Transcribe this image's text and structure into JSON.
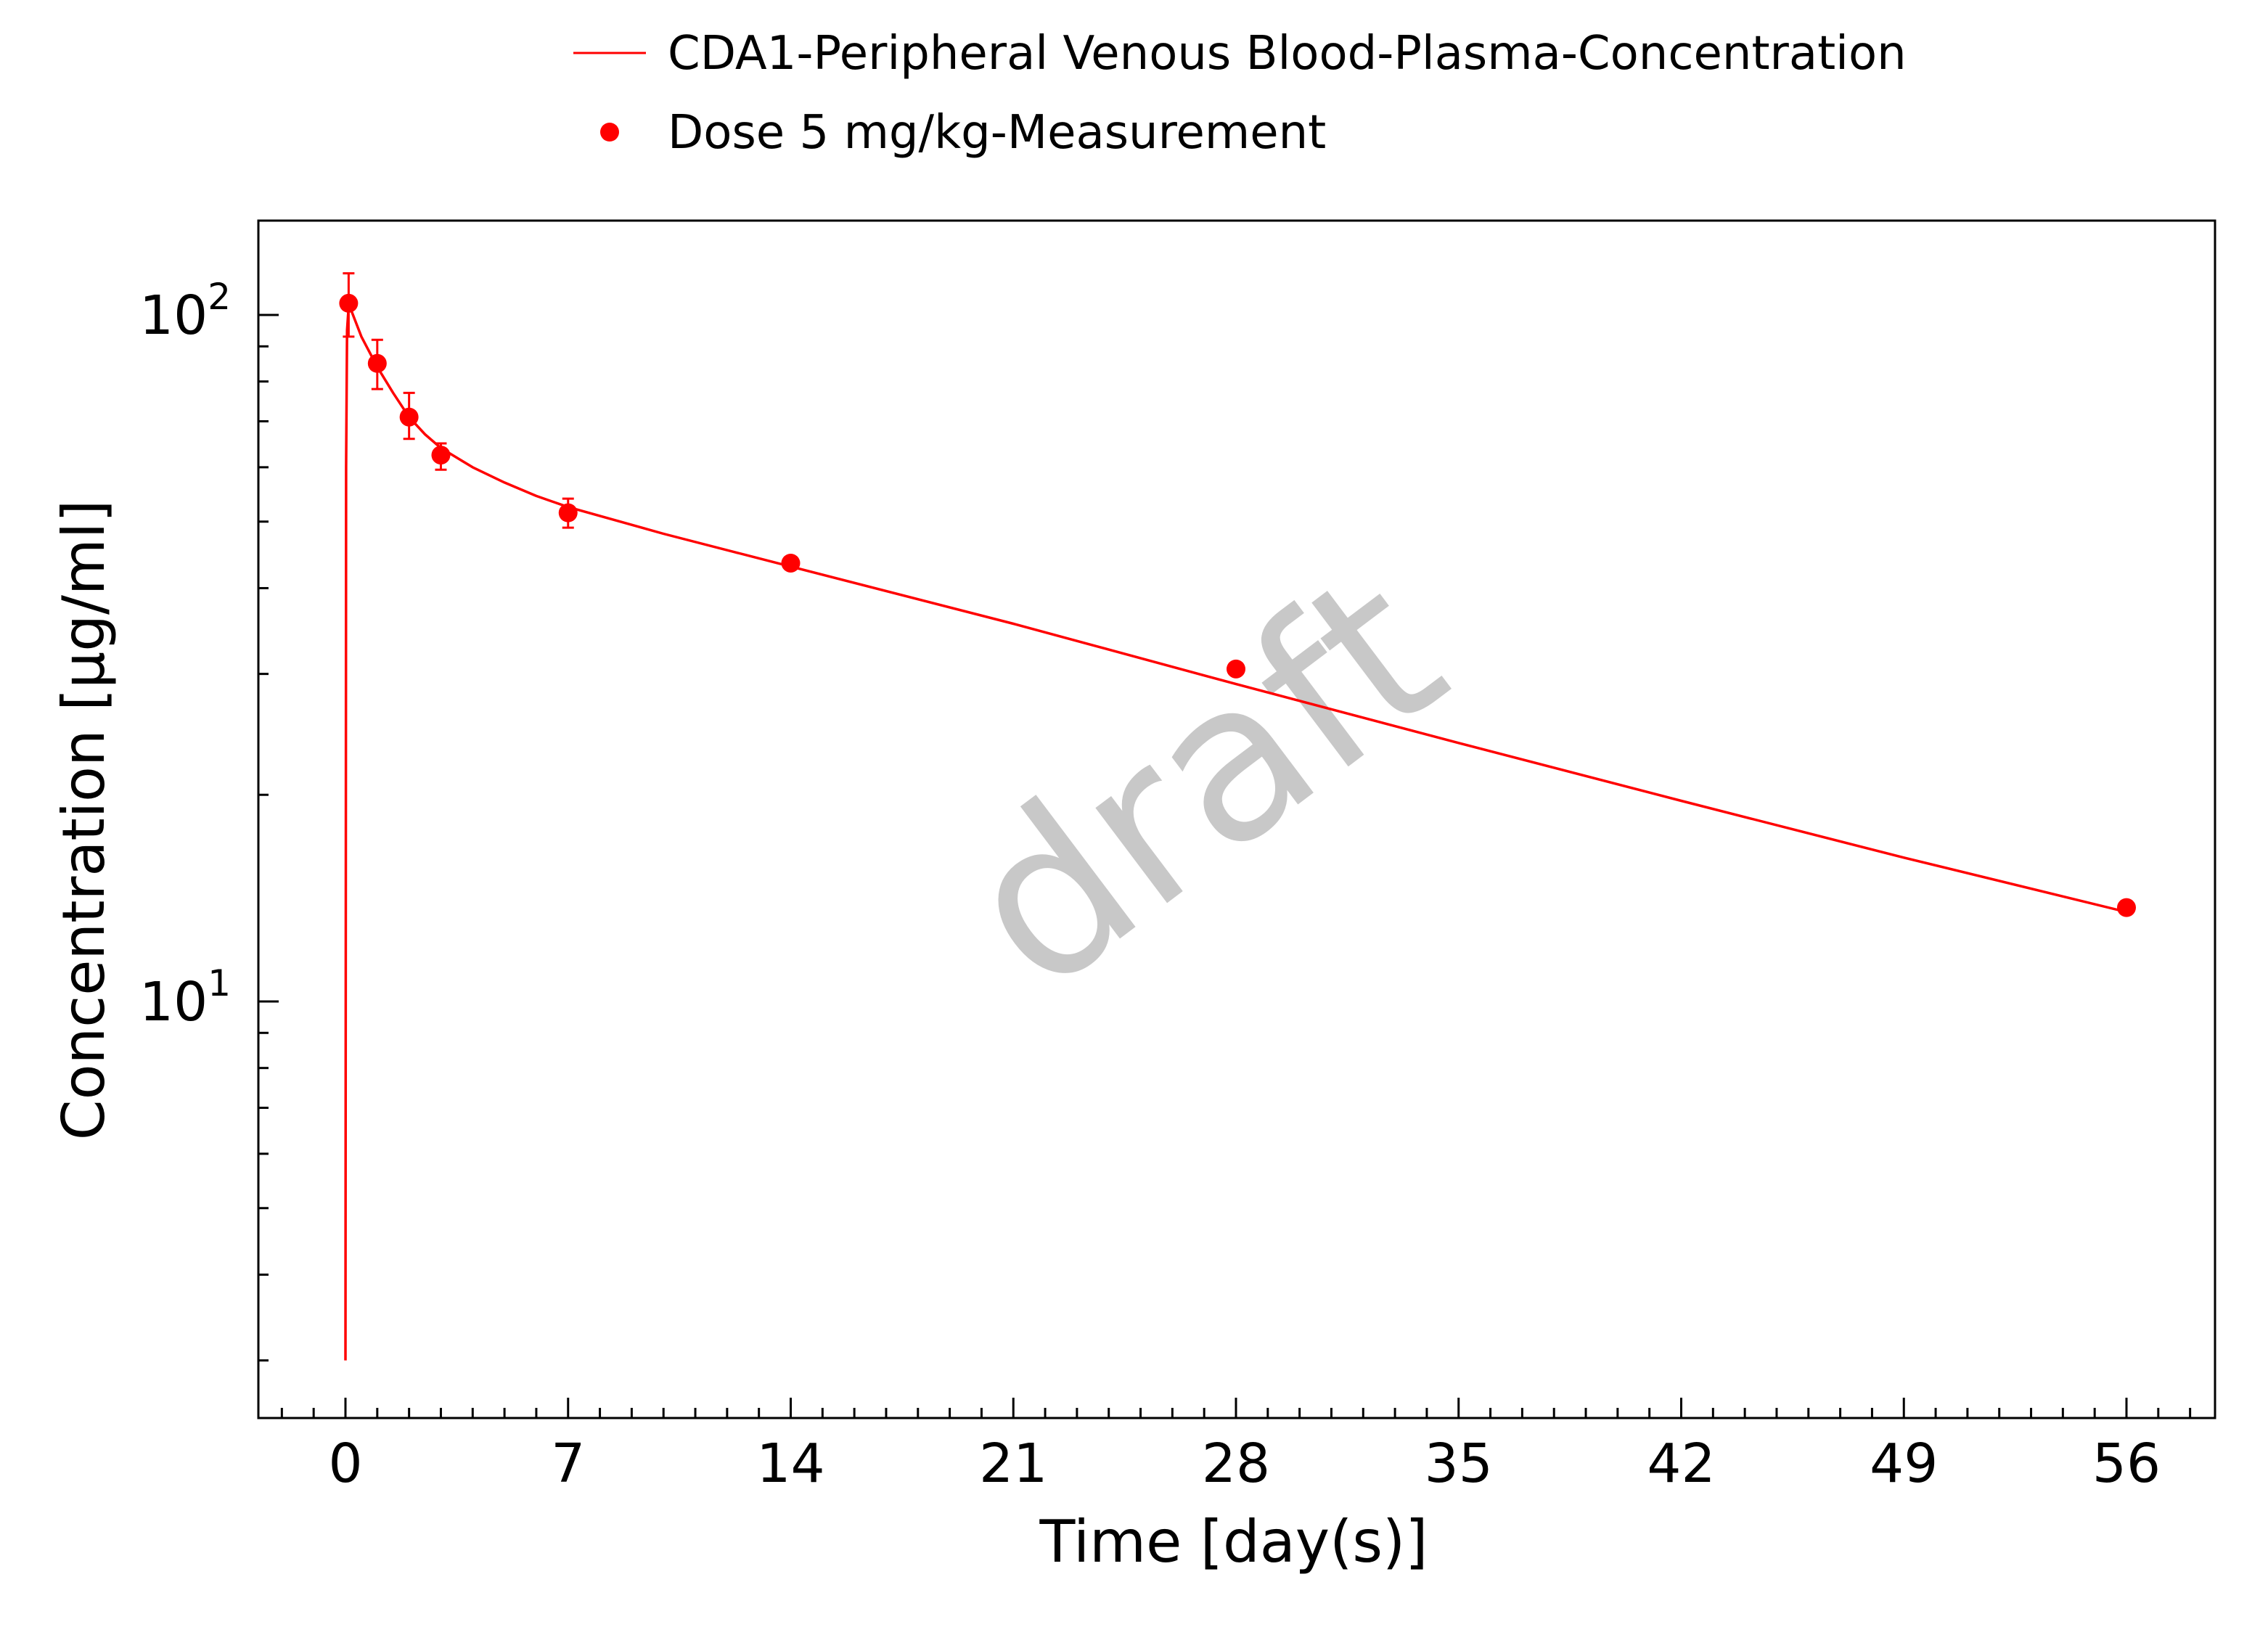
{
  "chart_data": {
    "type": "line",
    "xlabel": "Time [day(s)]",
    "ylabel": "Concentration [µg/ml]",
    "x_scale": "linear",
    "y_scale": "log",
    "xlim": [
      -4,
      84
    ],
    "ylim": [
      3,
      137
    ],
    "x_ticks": [
      0,
      7,
      14,
      21,
      28,
      35,
      42,
      49,
      56
    ],
    "x_tick_labels": [
      "0",
      "7",
      "14",
      "21",
      "28",
      "35",
      "42",
      "49",
      "56"
    ],
    "y_ticks": [
      10,
      100
    ],
    "y_tick_labels": [
      {
        "base": "10",
        "exp": "1"
      },
      {
        "base": "10",
        "exp": "2"
      }
    ],
    "grid": false,
    "legend_position": "top",
    "watermark": "draft",
    "series": [
      {
        "name": "CDA1-Peripheral Venous Blood-Plasma-Concentration",
        "kind": "line",
        "color": "#ff0000",
        "x": [
          0,
          0.02,
          0.05,
          0.1,
          0.2,
          0.5,
          1,
          1.5,
          2,
          2.5,
          3,
          4,
          5,
          6,
          7,
          10,
          14,
          21,
          28,
          35,
          42,
          49,
          56
        ],
        "y": [
          3.0,
          60,
          95,
          103,
          101,
          93,
          84,
          77,
          71,
          67,
          64,
          60,
          57,
          54.5,
          52.5,
          48,
          43,
          35.5,
          29,
          23.8,
          19.6,
          16.2,
          13.5
        ]
      },
      {
        "name": "Dose 5 mg/kg-Measurement",
        "kind": "scatter",
        "color": "#ff0000",
        "x": [
          0.1,
          1,
          2,
          3,
          7,
          14,
          28,
          56
        ],
        "y": [
          104,
          85,
          71,
          62.5,
          51.5,
          43.5,
          30.5,
          13.7
        ],
        "err_low": [
          93,
          78,
          66,
          59.5,
          49,
          null,
          null,
          null
        ],
        "err_high": [
          115,
          92,
          77,
          65,
          54,
          null,
          null,
          null
        ]
      }
    ]
  }
}
